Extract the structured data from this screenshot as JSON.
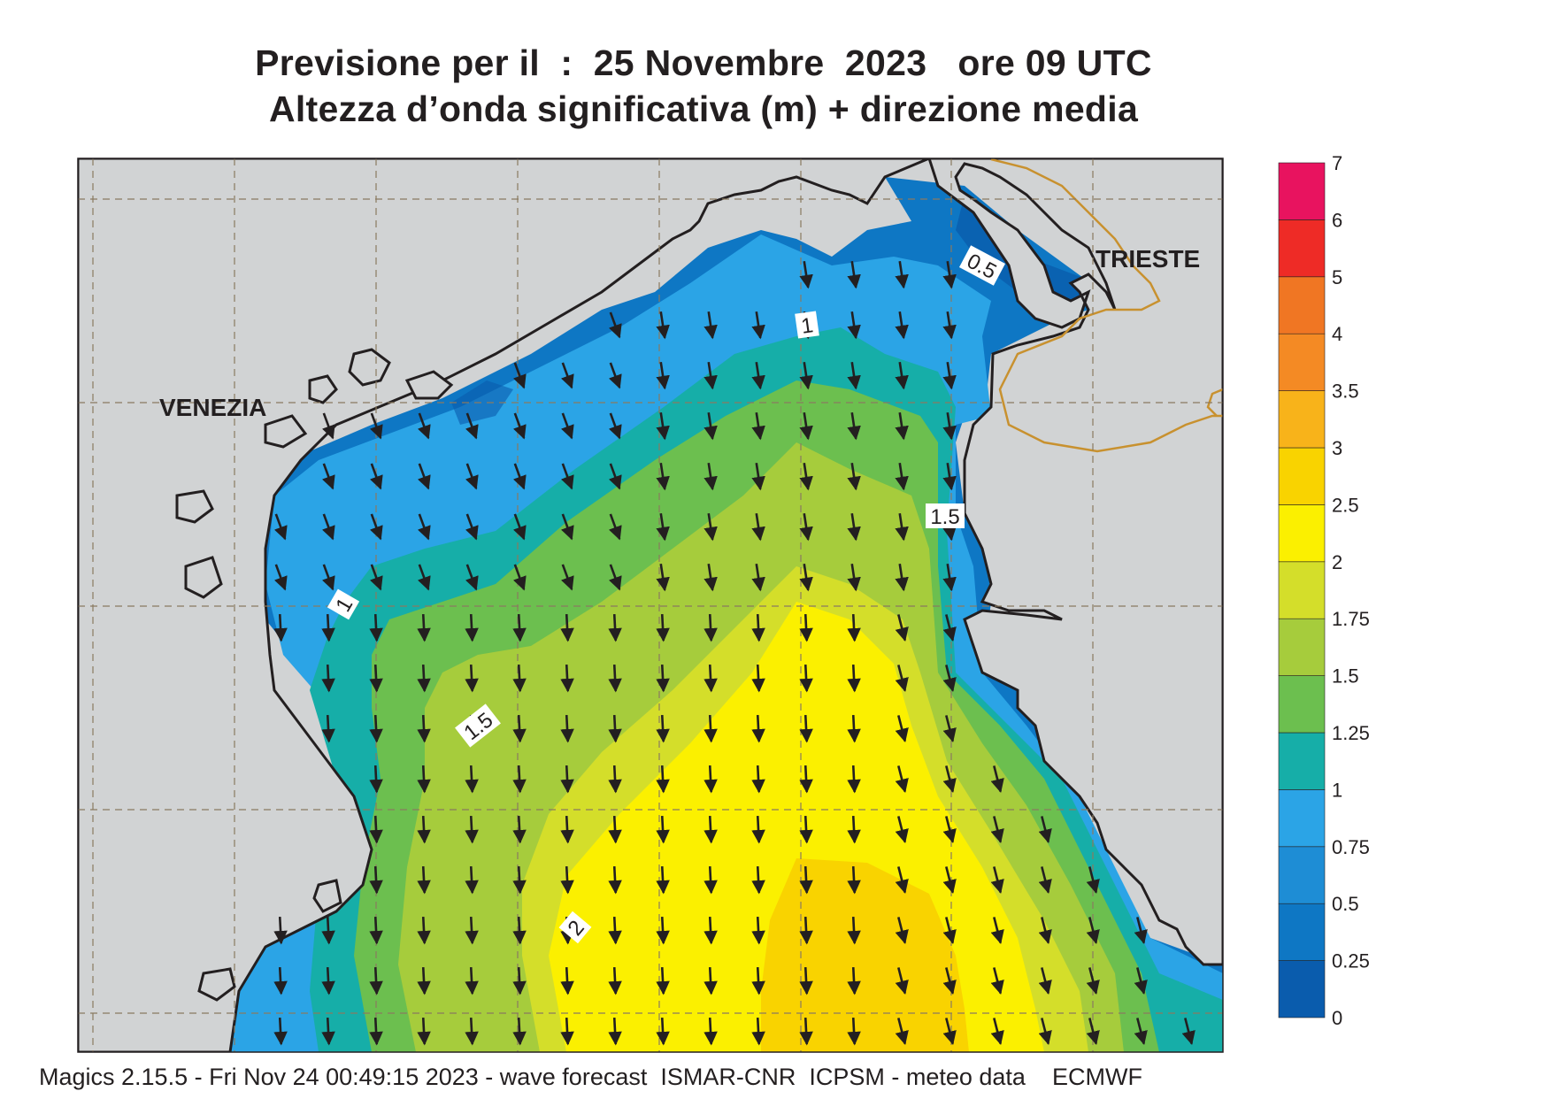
{
  "title": {
    "line1": "Previsione per il  :  25 Novembre  2023   ore 09 UTC",
    "line2": "Altezza d’onda significativa (m) + direzione media"
  },
  "map": {
    "cities": [
      {
        "name": "VENEZIA"
      },
      {
        "name": "TRIESTE"
      }
    ],
    "contour_labels": [
      "0.5",
      "1",
      "1",
      "1.5",
      "1.5",
      "2"
    ],
    "arrow_direction": "south"
  },
  "legend": {
    "levels": [
      "0",
      "0.25",
      "0.5",
      "0.75",
      "1",
      "1.25",
      "1.5",
      "1.75",
      "2",
      "2.5",
      "3",
      "3.5",
      "4",
      "5",
      "6",
      "7"
    ],
    "colors": [
      "#0a5cad",
      "#0e77c4",
      "#1e8dd5",
      "#2ba4e6",
      "#16aea8",
      "#6cbf4f",
      "#a6cc3c",
      "#d4de2a",
      "#fbf000",
      "#f9d300",
      "#f8b31a",
      "#f48a24",
      "#f07623",
      "#ee2b26",
      "#e8135f"
    ]
  },
  "colors": {
    "land": "#d1d3d4",
    "grid": "#8a7a60",
    "coast": "#231f20",
    "border": "#c8912f"
  },
  "footer": "Magics 2.15.5 - Fri Nov 24 00:49:15 2023 - wave forecast  ISMAR-CNR  ICPSM - meteo data    ECMWF"
}
